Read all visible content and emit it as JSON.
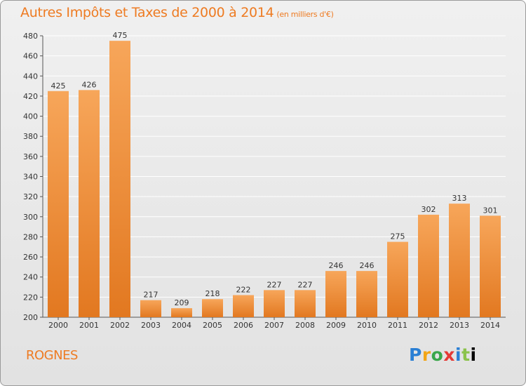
{
  "title": "Autres Impôts et Taxes de 2000 à 2014",
  "subtitle": "(en milliers d'€)",
  "region": "ROGNES",
  "brand": {
    "name": "Proxiti",
    "colors": [
      "#2a7fd4",
      "#f2a515",
      "#3aa64a",
      "#e53935",
      "#2a7fd4",
      "#8bc34a"
    ]
  },
  "colors": {
    "accent": "#ee7b22",
    "bar_light": "#f7a65a",
    "bar_dark": "#e27820",
    "grid": "#ffffff"
  },
  "chart_data": {
    "type": "bar",
    "title": "Autres Impôts et Taxes de 2000 à 2014",
    "subtitle": "(en milliers d'€)",
    "categories": [
      "2000",
      "2001",
      "2002",
      "2003",
      "2004",
      "2005",
      "2006",
      "2007",
      "2008",
      "2009",
      "2010",
      "2011",
      "2012",
      "2013",
      "2014"
    ],
    "values": [
      425,
      426,
      475,
      217,
      209,
      218,
      222,
      227,
      227,
      246,
      246,
      275,
      302,
      313,
      301
    ],
    "ylim": [
      200,
      480
    ],
    "yticks": [
      200,
      220,
      240,
      260,
      280,
      300,
      320,
      340,
      360,
      380,
      400,
      420,
      440,
      460,
      480
    ],
    "grid": true,
    "data_labels": true
  }
}
